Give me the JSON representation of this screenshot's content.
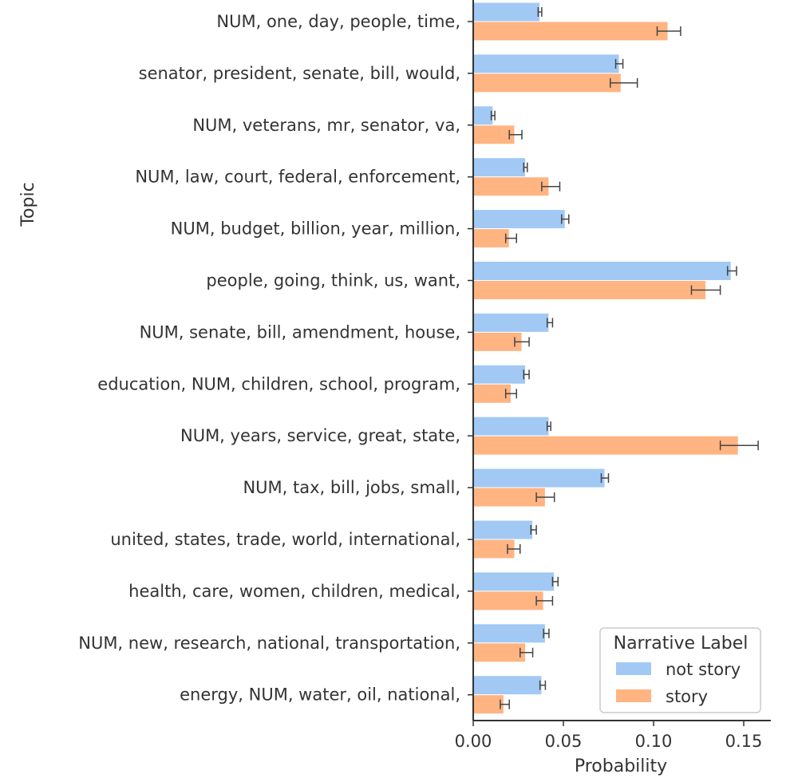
{
  "chart_data": {
    "type": "bar",
    "orientation": "horizontal",
    "xlabel": "Probability",
    "ylabel": "Topic",
    "xlim": [
      0,
      0.165
    ],
    "xticks": [
      "0.00",
      "0.05",
      "0.10",
      "0.15"
    ],
    "grid": false,
    "legend_position": "bottom-right",
    "legend_title": "Narrative Label",
    "categories": [
      "NUM, one, day, people, time,",
      "senator, president, senate, bill, would,",
      "NUM, veterans, mr, senator, va,",
      "NUM, law, court, federal, enforcement,",
      "NUM, budget, billion, year, million,",
      "people, going, think, us, want,",
      "NUM, senate, bill, amendment, house,",
      "education, NUM, children, school, program,",
      "NUM, years, service, great, state,",
      "NUM, tax, bill, jobs, small,",
      "united, states, trade, world, international,",
      "health, care, women, children, medical,",
      "NUM, new, research, national, transportation,",
      "energy, NUM, water, oil, national,"
    ],
    "series": [
      {
        "name": "not story",
        "color": "#a1c9f4",
        "values": [
          0.037,
          0.081,
          0.011,
          0.029,
          0.051,
          0.143,
          0.042,
          0.029,
          0.042,
          0.073,
          0.033,
          0.045,
          0.04,
          0.038
        ],
        "err_low": [
          0.036,
          0.079,
          0.01,
          0.028,
          0.049,
          0.141,
          0.041,
          0.028,
          0.041,
          0.071,
          0.032,
          0.044,
          0.039,
          0.037
        ],
        "err_high": [
          0.038,
          0.083,
          0.012,
          0.03,
          0.053,
          0.146,
          0.044,
          0.031,
          0.043,
          0.075,
          0.035,
          0.047,
          0.042,
          0.04
        ]
      },
      {
        "name": "story",
        "color": "#ffb482",
        "values": [
          0.108,
          0.082,
          0.023,
          0.042,
          0.02,
          0.129,
          0.027,
          0.021,
          0.147,
          0.04,
          0.023,
          0.039,
          0.029,
          0.017
        ],
        "err_low": [
          0.102,
          0.076,
          0.02,
          0.038,
          0.018,
          0.121,
          0.023,
          0.018,
          0.137,
          0.035,
          0.019,
          0.035,
          0.026,
          0.015
        ],
        "err_high": [
          0.115,
          0.091,
          0.027,
          0.048,
          0.024,
          0.137,
          0.031,
          0.024,
          0.158,
          0.045,
          0.026,
          0.044,
          0.033,
          0.02
        ]
      }
    ]
  }
}
